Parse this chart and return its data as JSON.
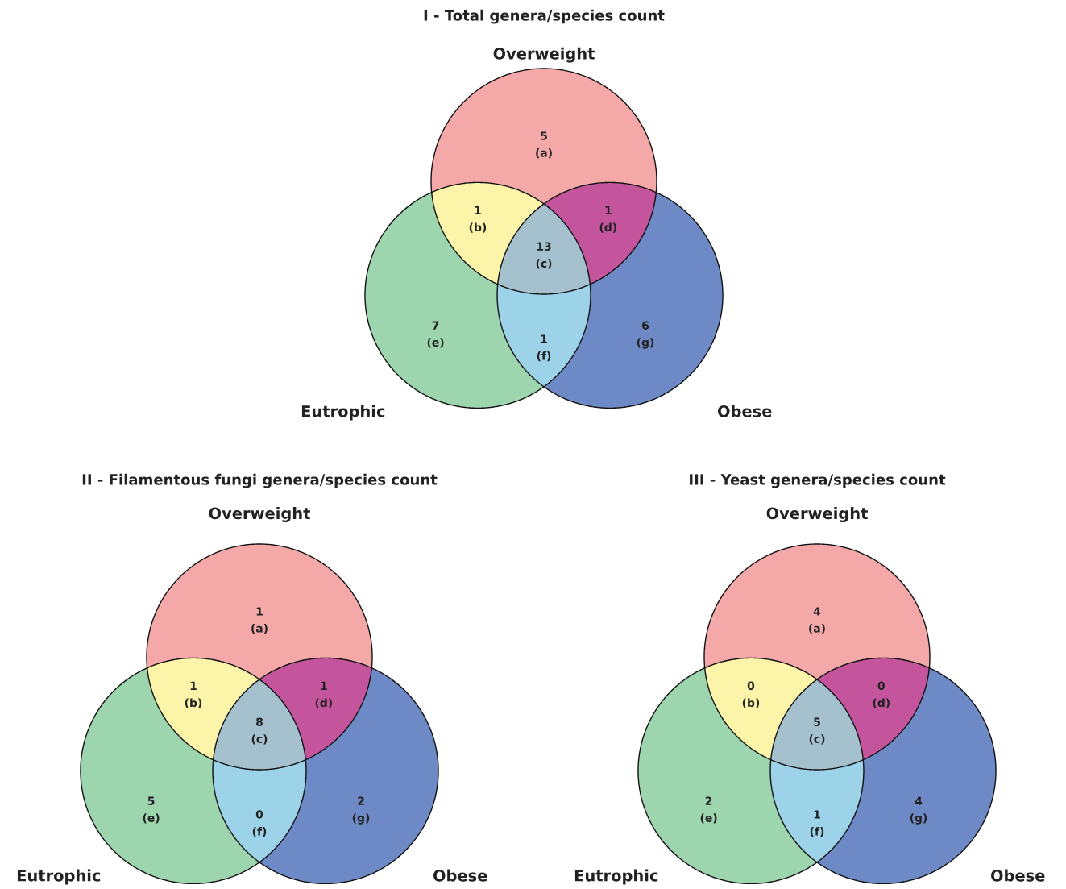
{
  "chart_data": [
    {
      "type": "other",
      "title": "I - Total genera/species count",
      "categories": [
        "(a)",
        "(b)",
        "(c)",
        "(d)",
        "(e)",
        "(f)",
        "(g)"
      ],
      "values": [
        5,
        1,
        13,
        1,
        7,
        1,
        6
      ],
      "data_labels": true,
      "colors": [
        "#f4a9a8",
        "#fbf4a9",
        "#a5c1ce",
        "#c4559c",
        "#9dd5ae",
        "#9cd3e9",
        "#6d8ac7"
      ],
      "annotations": [
        "Overweight",
        "Eutrophic",
        "Obese"
      ]
    },
    {
      "type": "other",
      "title": "II - Filamentous fungi genera/species count",
      "categories": [
        "(a)",
        "(b)",
        "(c)",
        "(d)",
        "(e)",
        "(f)",
        "(g)"
      ],
      "values": [
        1,
        1,
        8,
        1,
        5,
        0,
        2
      ],
      "data_labels": true,
      "colors": [
        "#f4a9a8",
        "#fbf4a9",
        "#a5c1ce",
        "#c4559c",
        "#9dd5ae",
        "#9cd3e9",
        "#6d8ac7"
      ],
      "annotations": [
        "Overweight",
        "Eutrophic",
        "Obese"
      ]
    },
    {
      "type": "other",
      "title": "III - Yeast genera/species count",
      "categories": [
        "(a)",
        "(b)",
        "(c)",
        "(d)",
        "(e)",
        "(f)",
        "(g)"
      ],
      "values": [
        4,
        0,
        5,
        0,
        2,
        1,
        4
      ],
      "data_labels": true,
      "colors": [
        "#f4a9a8",
        "#fbf4a9",
        "#a5c1ce",
        "#c4559c",
        "#9dd5ae",
        "#9cd3e9",
        "#6d8ac7"
      ],
      "annotations": [
        "Overweight",
        "Eutrophic",
        "Obese"
      ]
    }
  ]
}
